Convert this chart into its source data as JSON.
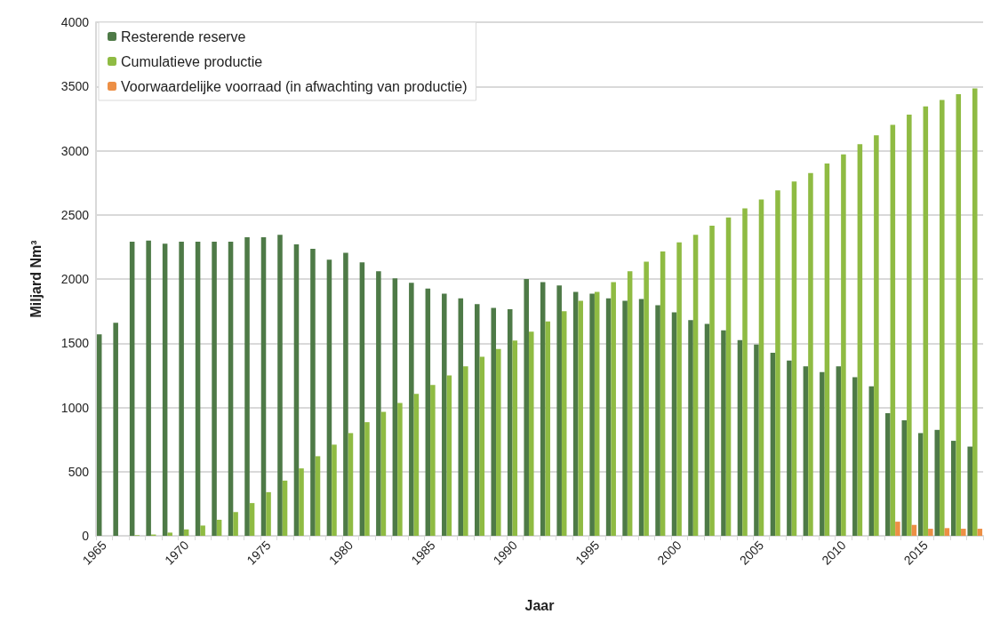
{
  "chart_data": {
    "type": "bar",
    "xlabel": "Jaar",
    "ylabel": "Miljard Nm³",
    "categories": [
      "1965",
      null,
      null,
      null,
      null,
      "1970",
      null,
      null,
      null,
      null,
      "1975",
      null,
      null,
      null,
      null,
      "1980",
      null,
      null,
      null,
      null,
      "1985",
      null,
      null,
      null,
      null,
      "1990",
      null,
      null,
      null,
      null,
      "1995",
      null,
      null,
      null,
      null,
      "2000",
      null,
      null,
      null,
      null,
      "2005",
      null,
      null,
      null,
      null,
      "2010",
      null,
      null,
      null,
      null,
      "2015",
      null,
      null,
      null
    ],
    "series": [
      {
        "name": "Resterende reserve",
        "color": "#4e7a47",
        "values": [
          1570,
          1660,
          2290,
          2300,
          2275,
          2290,
          2290,
          2290,
          2290,
          2325,
          2325,
          2345,
          2270,
          2235,
          2150,
          2205,
          2130,
          2060,
          2005,
          1970,
          1925,
          1885,
          1850,
          1805,
          1775,
          1765,
          2000,
          1975,
          1950,
          1900,
          1885,
          1850,
          1830,
          1845,
          1795,
          1740,
          1680,
          1650,
          1600,
          1525,
          1490,
          1425,
          1365,
          1320,
          1275,
          1320,
          1235,
          1165,
          955,
          900,
          800,
          825,
          740,
          695
        ]
      },
      {
        "name": "Cumulatieve productie",
        "color": "#8fbb43",
        "values": [
          0,
          0,
          5,
          10,
          25,
          50,
          80,
          125,
          185,
          255,
          340,
          430,
          525,
          620,
          710,
          800,
          885,
          965,
          1035,
          1105,
          1175,
          1250,
          1320,
          1395,
          1455,
          1520,
          1590,
          1670,
          1750,
          1830,
          1900,
          1975,
          2060,
          2135,
          2215,
          2285,
          2345,
          2415,
          2480,
          2550,
          2620,
          2690,
          2760,
          2825,
          2900,
          2970,
          3050,
          3120,
          3200,
          3280,
          3345,
          3395,
          3440,
          3485
        ]
      },
      {
        "name": "Voorwaardelijke voorraad (in afwachting van productie)",
        "color": "#ed8f45",
        "values": [
          null,
          null,
          null,
          null,
          null,
          null,
          null,
          null,
          null,
          null,
          null,
          null,
          null,
          null,
          null,
          null,
          null,
          null,
          null,
          null,
          null,
          null,
          null,
          null,
          null,
          null,
          null,
          null,
          null,
          null,
          null,
          null,
          null,
          null,
          null,
          null,
          null,
          null,
          null,
          null,
          null,
          null,
          null,
          null,
          null,
          null,
          null,
          null,
          110,
          85,
          55,
          60,
          55,
          55
        ]
      }
    ],
    "ylim": [
      0,
      4000
    ],
    "yticks": [
      0,
      500,
      1000,
      1500,
      2000,
      2500,
      3000,
      3500,
      4000
    ],
    "grid": "y",
    "legend": "top left"
  }
}
